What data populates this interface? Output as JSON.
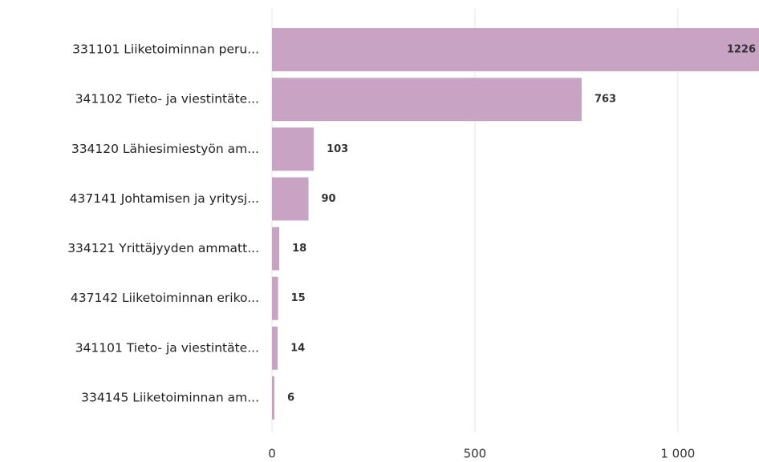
{
  "chart_data": {
    "type": "bar",
    "orientation": "horizontal",
    "categories": [
      "331101 Liiketoiminnan peru...",
      "341102 Tieto- ja viestintäte...",
      "334120 Lähiesimiestyön am...",
      "437141 Johtamisen ja yritysj...",
      "334121 Yrittäjyyden ammatt...",
      "437142 Liiketoiminnan eriko...",
      "341101 Tieto- ja viestintäte...",
      "334145 Liiketoiminnan am..."
    ],
    "values": [
      1226,
      763,
      103,
      90,
      18,
      15,
      14,
      6
    ],
    "color": "#c9a3c4",
    "xlim": [
      0,
      1200
    ],
    "xticks": [
      0,
      500,
      {
        "value": 1000,
        "label": "1 000"
      }
    ],
    "grid": true
  }
}
